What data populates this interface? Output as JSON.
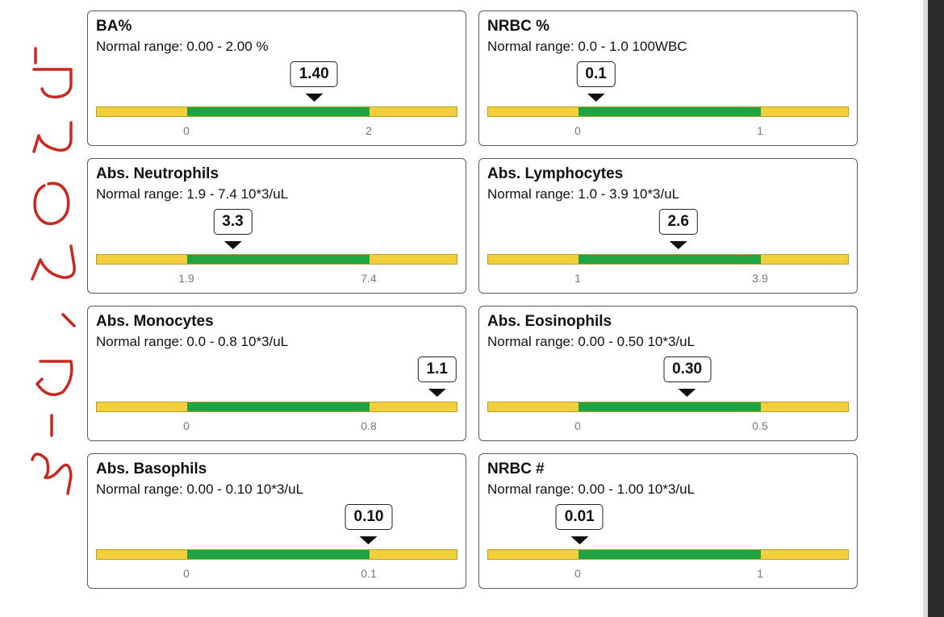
{
  "annotation": {
    "handwritten_date": "3-6-2025"
  },
  "colors": {
    "normal": "#1fa443",
    "out_of_range": "#f2cf3b",
    "handwriting": "#c8281e"
  },
  "cards": [
    {
      "title": "BA%",
      "range": "Normal range: 0.00 - 2.00 %",
      "value": "1.40",
      "value_num": 1.4,
      "low": 0,
      "high": 2,
      "low_label": "0",
      "high_label": "2"
    },
    {
      "title": "NRBC %",
      "range": "Normal range: 0.0 - 1.0 100WBC",
      "value": "0.1",
      "value_num": 0.1,
      "low": 0,
      "high": 1,
      "low_label": "0",
      "high_label": "1"
    },
    {
      "title": "Abs. Neutrophils",
      "range": "Normal range: 1.9 - 7.4 10*3/uL",
      "value": "3.3",
      "value_num": 3.3,
      "low": 1.9,
      "high": 7.4,
      "low_label": "1.9",
      "high_label": "7.4"
    },
    {
      "title": "Abs. Lymphocytes",
      "range": "Normal range: 1.0 - 3.9 10*3/uL",
      "value": "2.6",
      "value_num": 2.6,
      "low": 1.0,
      "high": 3.9,
      "low_label": "1",
      "high_label": "3.9"
    },
    {
      "title": "Abs. Monocytes",
      "range": "Normal range: 0.0 - 0.8 10*3/uL",
      "value": "1.1",
      "value_num": 1.1,
      "low": 0,
      "high": 0.8,
      "low_label": "0",
      "high_label": "0.8"
    },
    {
      "title": "Abs. Eosinophils",
      "range": "Normal range: 0.00 - 0.50 10*3/uL",
      "value": "0.30",
      "value_num": 0.3,
      "low": 0,
      "high": 0.5,
      "low_label": "0",
      "high_label": "0.5"
    },
    {
      "title": "Abs. Basophils",
      "range": "Normal range: 0.00 - 0.10 10*3/uL",
      "value": "0.10",
      "value_num": 0.1,
      "low": 0,
      "high": 0.1,
      "low_label": "0",
      "high_label": "0.1"
    },
    {
      "title": "NRBC #",
      "range": "Normal range: 0.00 - 1.00 10*3/uL",
      "value": "0.01",
      "value_num": 0.01,
      "low": 0,
      "high": 1,
      "low_label": "0",
      "high_label": "1"
    }
  ]
}
